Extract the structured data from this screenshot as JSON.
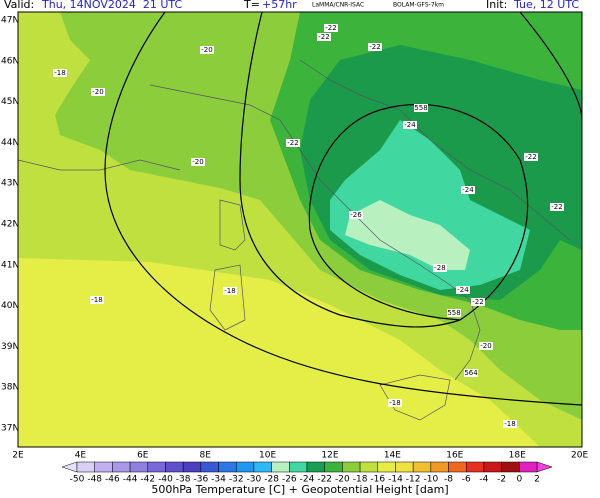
{
  "header": {
    "valid_label": "Valid:",
    "valid": "Thu, 14NOV2024  21 UTC",
    "lead_label": "T=",
    "lead": "+57hr",
    "source": "LaMMA/CNR-ISAC",
    "model": "BOLAM-GFS-7km",
    "init_label": "Init:",
    "init": "Tue, 12 UTC"
  },
  "map": {
    "lat_labels": [
      "47N",
      "46N",
      "45N",
      "44N",
      "43N",
      "42N",
      "41N",
      "40N",
      "39N",
      "38N",
      "37N"
    ],
    "lon_labels": [
      "2E",
      "4E",
      "6E",
      "8E",
      "10E",
      "12E",
      "14E",
      "16E",
      "18E",
      "20E"
    ],
    "contour_labels": [
      "-20",
      "-22",
      "-22",
      "-22",
      "-18",
      "-20",
      "-20",
      "-22",
      "-24",
      "558",
      "-22",
      "-24",
      "-22",
      "-26",
      "-28",
      "-24",
      "-22",
      "558",
      "-18",
      "-18",
      "-20",
      "564",
      "-18",
      "-18"
    ]
  },
  "colorbar": {
    "labels": [
      "-50",
      "-48",
      "-46",
      "-44",
      "-42",
      "-40",
      "-38",
      "-36",
      "-34",
      "-32",
      "-30",
      "-28",
      "-26",
      "-24",
      "-22",
      "-20",
      "-18",
      "-16",
      "-14",
      "-12",
      "-10",
      "-8",
      "-6",
      "-4",
      "-2",
      "0",
      "2"
    ],
    "title": "500hPa Temperature [C] + Geopotential Height [dam]"
  }
}
